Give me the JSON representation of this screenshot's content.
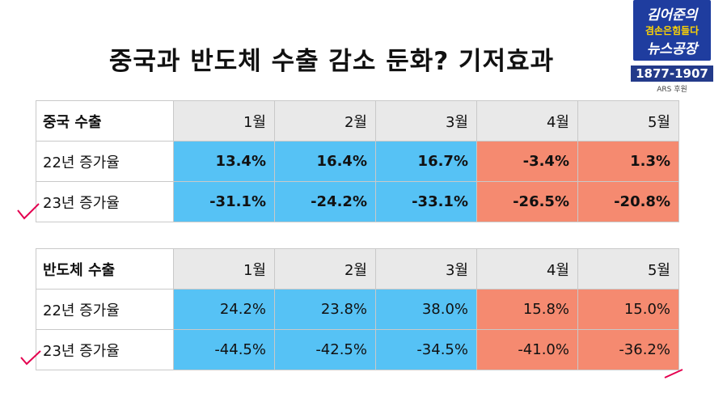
{
  "title": "중국과 반도체 수출 감소 둔화? 기저효과",
  "logo": {
    "line1": "김어준의",
    "line2": "겸손은힘들다",
    "line3": "뉴스공장",
    "phone": "1877-1907",
    "sub": "ARS 후원",
    "bg_color": "#1f3d9f"
  },
  "colors": {
    "blue": "#56c2f5",
    "red": "#f58a70",
    "header": "#e9e9e9",
    "check": "#e4004f"
  },
  "tables": [
    {
      "header_label": "중국 수출",
      "months": [
        "1월",
        "2월",
        "3월",
        "4월",
        "5월"
      ],
      "rows": [
        {
          "label": "22년 증가율",
          "values": [
            "13.4%",
            "16.4%",
            "16.7%",
            "-3.4%",
            "1.3%"
          ]
        },
        {
          "label": "23년 증가율",
          "values": [
            "-31.1%",
            "-24.2%",
            "-33.1%",
            "-26.5%",
            "-20.8%"
          ]
        }
      ]
    },
    {
      "header_label": "반도체 수출",
      "months": [
        "1월",
        "2월",
        "3월",
        "4월",
        "5월"
      ],
      "rows": [
        {
          "label": "22년 증가율",
          "values": [
            "24.2%",
            "23.8%",
            "38.0%",
            "15.8%",
            "15.0%"
          ]
        },
        {
          "label": "23년 증가율",
          "values": [
            "-44.5%",
            "-42.5%",
            "-34.5%",
            "-41.0%",
            "-36.2%"
          ]
        }
      ]
    }
  ]
}
